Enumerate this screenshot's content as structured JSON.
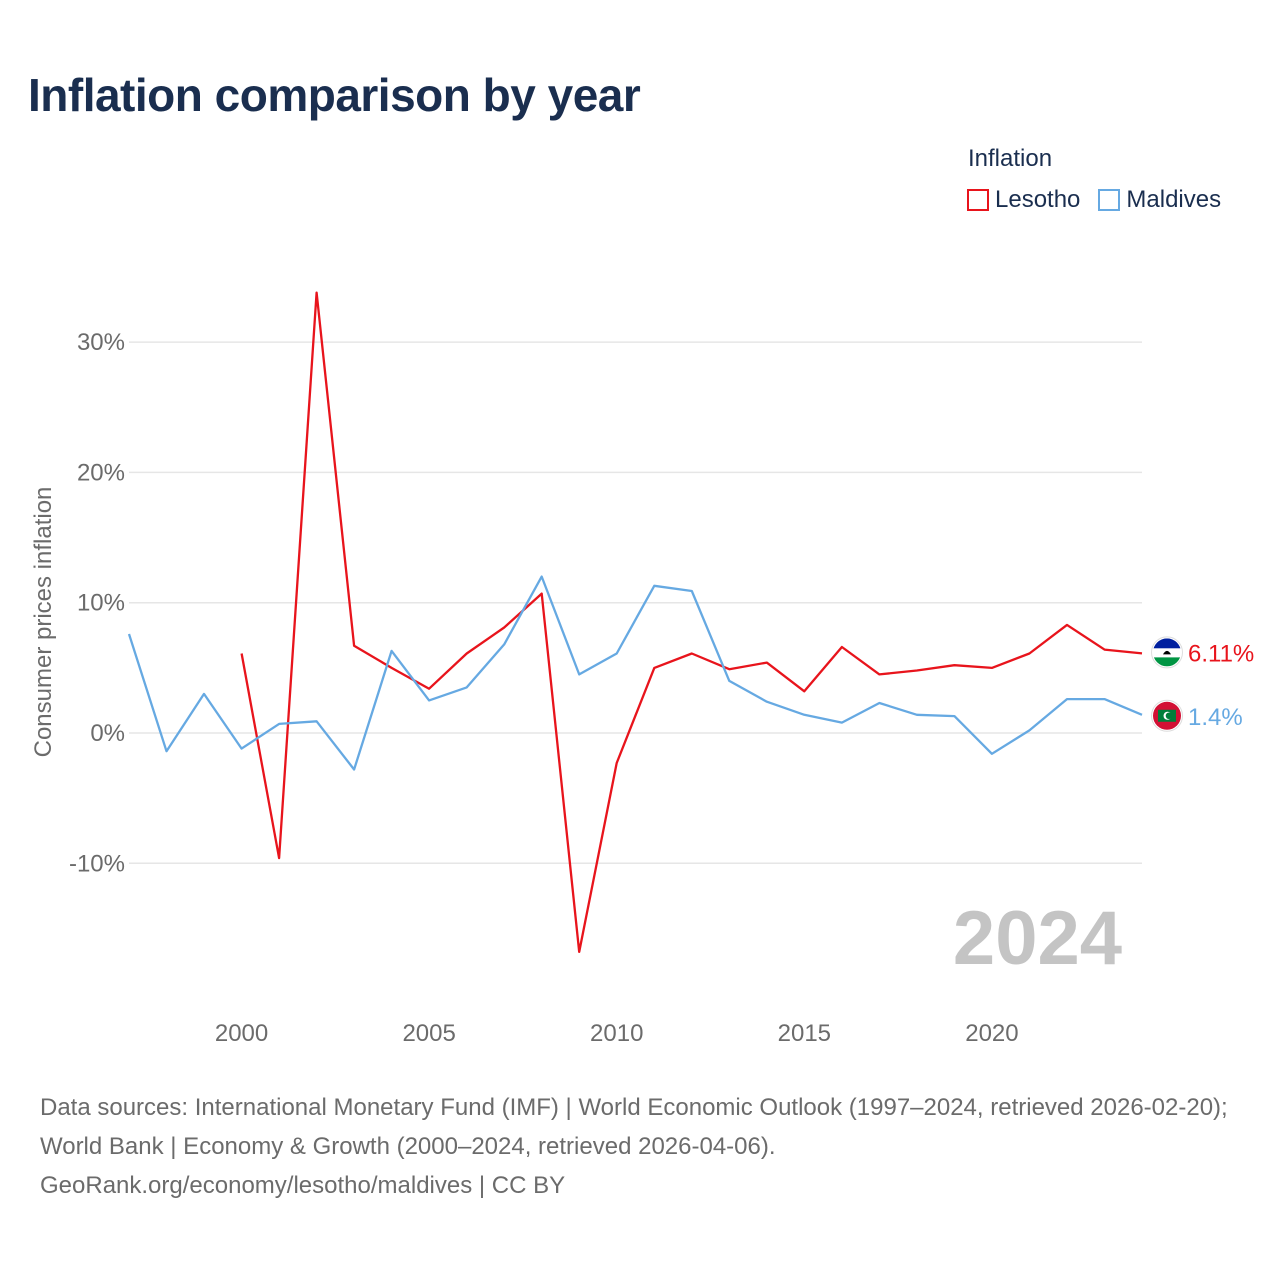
{
  "chart_data": {
    "type": "line",
    "title": "Inflation comparison by year",
    "legend_title": "Inflation",
    "ylabel": "Consumer prices inflation",
    "xlabel": "",
    "xlim": [
      1997,
      2024
    ],
    "ylim": [
      -20,
      36
    ],
    "x_ticks": [
      2000,
      2005,
      2010,
      2015,
      2020
    ],
    "y_ticks": [
      -10,
      0,
      10,
      20,
      30
    ],
    "y_tick_labels": [
      "-10%",
      "0%",
      "10%",
      "20%",
      "30%"
    ],
    "year_watermark": "2024",
    "series": [
      {
        "name": "Lesotho",
        "color": "#e8141c",
        "x": [
          2000,
          2001,
          2002,
          2003,
          2004,
          2005,
          2006,
          2007,
          2008,
          2009,
          2010,
          2011,
          2012,
          2013,
          2014,
          2015,
          2016,
          2017,
          2018,
          2019,
          2020,
          2021,
          2022,
          2023,
          2024
        ],
        "values": [
          6.1,
          -9.6,
          33.8,
          6.7,
          5.0,
          3.4,
          6.1,
          8.1,
          10.7,
          -16.8,
          -2.3,
          5.0,
          6.1,
          4.9,
          5.4,
          3.2,
          6.6,
          4.5,
          4.8,
          5.2,
          5.0,
          6.1,
          8.3,
          6.4,
          6.11
        ],
        "end_label": "6.11%"
      },
      {
        "name": "Maldives",
        "color": "#66a9e2",
        "x": [
          1997,
          1998,
          1999,
          2000,
          2001,
          2002,
          2003,
          2004,
          2005,
          2006,
          2007,
          2008,
          2009,
          2010,
          2011,
          2012,
          2013,
          2014,
          2015,
          2016,
          2017,
          2018,
          2019,
          2020,
          2021,
          2022,
          2023,
          2024
        ],
        "values": [
          7.6,
          -1.4,
          3.0,
          -1.2,
          0.7,
          0.9,
          -2.8,
          6.3,
          2.5,
          3.5,
          6.8,
          12.0,
          4.5,
          6.1,
          11.3,
          10.9,
          4.0,
          2.4,
          1.4,
          0.8,
          2.3,
          1.4,
          1.3,
          -1.6,
          0.2,
          2.6,
          2.6,
          1.4
        ],
        "end_label": "1.4%"
      }
    ]
  },
  "footer": {
    "line1": "Data sources: International Monetary Fund (IMF) | World Economic Outlook (1997–2024, retrieved 2026-02-20); World Bank | Economy & Growth (2000–2024, retrieved 2026-04-06).",
    "line2": "GeoRank.org/economy/lesotho/maldives | CC BY"
  }
}
